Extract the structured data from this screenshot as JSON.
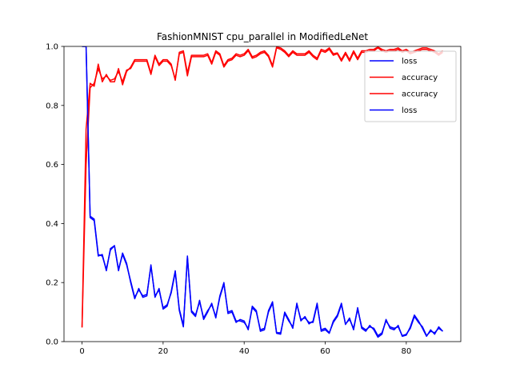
{
  "colors": {
    "loss": "#0000ff",
    "accuracy": "#ff0000",
    "axis": "#000000"
  },
  "chart_data": {
    "type": "line",
    "title": "FashionMNIST cpu_parallel in ModifiedLeNet",
    "xlabel": "",
    "ylabel": "",
    "xlim": [
      -4.45,
      93.45
    ],
    "ylim": [
      0,
      1.0
    ],
    "xticks": [
      0,
      20,
      40,
      60,
      80
    ],
    "yticks": [
      0.0,
      0.2,
      0.4,
      0.6,
      0.8,
      1.0
    ],
    "xtick_labels": [
      "0",
      "20",
      "40",
      "60",
      "80"
    ],
    "ytick_labels": [
      "0.0",
      "0.2",
      "0.4",
      "0.6",
      "0.8",
      "1.0"
    ],
    "grid": false,
    "legend_position": "top-right",
    "series": [
      {
        "name": "loss",
        "color": "#0000ff",
        "values": [
          1.0,
          1.0,
          0.42,
          0.41,
          0.29,
          0.295,
          0.24,
          0.315,
          0.325,
          0.24,
          0.3,
          0.265,
          0.2,
          0.145,
          0.18,
          0.15,
          0.155,
          0.26,
          0.15,
          0.18,
          0.11,
          0.12,
          0.17,
          0.24,
          0.105,
          0.05,
          0.29,
          0.1,
          0.085,
          0.14,
          0.075,
          0.1,
          0.13,
          0.08,
          0.155,
          0.2,
          0.095,
          0.1,
          0.065,
          0.075,
          0.07,
          0.04,
          0.12,
          0.105,
          0.035,
          0.04,
          0.105,
          0.135,
          0.028,
          0.025,
          0.1,
          0.075,
          0.045,
          0.13,
          0.07,
          0.085,
          0.06,
          0.07,
          0.13,
          0.035,
          0.04,
          0.028,
          0.07,
          0.09,
          0.13,
          0.058,
          0.08,
          0.04,
          0.115,
          0.045,
          0.035,
          0.055,
          0.04,
          0.015,
          0.025,
          0.075,
          0.045,
          0.04,
          0.055,
          0.018,
          0.022,
          0.05,
          0.09,
          0.07,
          0.045,
          0.018,
          0.04,
          0.025,
          0.05,
          0.035
        ]
      },
      {
        "name": "accuracy",
        "color": "#ff0000",
        "values": [
          0.048,
          0.72,
          0.875,
          0.865,
          0.94,
          0.88,
          0.905,
          0.88,
          0.88,
          0.925,
          0.87,
          0.915,
          0.93,
          0.955,
          0.955,
          0.955,
          0.955,
          0.91,
          0.97,
          0.94,
          0.955,
          0.955,
          0.94,
          0.885,
          0.98,
          0.985,
          0.91,
          0.97,
          0.97,
          0.97,
          0.97,
          0.975,
          0.945,
          0.985,
          0.975,
          0.935,
          0.955,
          0.96,
          0.975,
          0.97,
          0.975,
          0.99,
          0.965,
          0.97,
          0.98,
          0.985,
          0.97,
          0.935,
          0.998,
          0.995,
          0.985,
          0.97,
          0.985,
          0.975,
          0.975,
          0.975,
          0.985,
          0.97,
          0.96,
          0.99,
          0.985,
          0.995,
          0.975,
          0.978,
          0.955,
          0.98,
          0.955,
          0.985,
          0.96,
          0.985,
          0.985,
          0.99,
          0.99,
          0.998,
          0.99,
          0.985,
          0.99,
          0.99,
          0.995,
          0.985,
          0.99,
          0.98,
          0.985,
          0.99,
          0.995,
          0.995,
          0.99,
          0.985,
          0.975,
          0.985
        ]
      },
      {
        "name": "accuracy",
        "color": "#ff0000",
        "values": [
          0.048,
          0.6,
          0.86,
          0.875,
          0.925,
          0.89,
          0.9,
          0.885,
          0.89,
          0.915,
          0.88,
          0.92,
          0.925,
          0.95,
          0.95,
          0.95,
          0.95,
          0.905,
          0.965,
          0.935,
          0.95,
          0.95,
          0.935,
          0.89,
          0.975,
          0.98,
          0.9,
          0.965,
          0.965,
          0.965,
          0.965,
          0.97,
          0.94,
          0.98,
          0.97,
          0.93,
          0.95,
          0.955,
          0.97,
          0.965,
          0.97,
          0.985,
          0.96,
          0.965,
          0.975,
          0.98,
          0.965,
          0.93,
          0.995,
          0.99,
          0.98,
          0.965,
          0.98,
          0.97,
          0.97,
          0.97,
          0.98,
          0.965,
          0.955,
          0.985,
          0.98,
          0.99,
          0.97,
          0.975,
          0.95,
          0.975,
          0.95,
          0.98,
          0.955,
          0.98,
          0.98,
          0.985,
          0.985,
          0.995,
          0.985,
          0.98,
          0.985,
          0.985,
          0.99,
          0.98,
          0.985,
          0.975,
          0.98,
          0.985,
          0.99,
          0.99,
          0.985,
          0.98,
          0.97,
          0.98
        ]
      },
      {
        "name": "loss",
        "color": "#0000ff",
        "values": [
          1.0,
          1.0,
          0.425,
          0.415,
          0.295,
          0.29,
          0.245,
          0.31,
          0.325,
          0.245,
          0.295,
          0.26,
          0.205,
          0.15,
          0.175,
          0.155,
          0.16,
          0.255,
          0.155,
          0.175,
          0.115,
          0.125,
          0.165,
          0.235,
          0.11,
          0.055,
          0.285,
          0.105,
          0.09,
          0.135,
          0.08,
          0.105,
          0.125,
          0.085,
          0.15,
          0.195,
          0.1,
          0.105,
          0.07,
          0.07,
          0.065,
          0.045,
          0.115,
          0.1,
          0.04,
          0.045,
          0.1,
          0.13,
          0.03,
          0.03,
          0.095,
          0.07,
          0.05,
          0.125,
          0.075,
          0.08,
          0.065,
          0.065,
          0.125,
          0.04,
          0.045,
          0.03,
          0.065,
          0.085,
          0.125,
          0.06,
          0.075,
          0.045,
          0.11,
          0.05,
          0.04,
          0.05,
          0.045,
          0.02,
          0.03,
          0.07,
          0.05,
          0.045,
          0.05,
          0.02,
          0.025,
          0.045,
          0.085,
          0.065,
          0.05,
          0.02,
          0.035,
          0.03,
          0.045,
          0.035
        ]
      }
    ]
  }
}
